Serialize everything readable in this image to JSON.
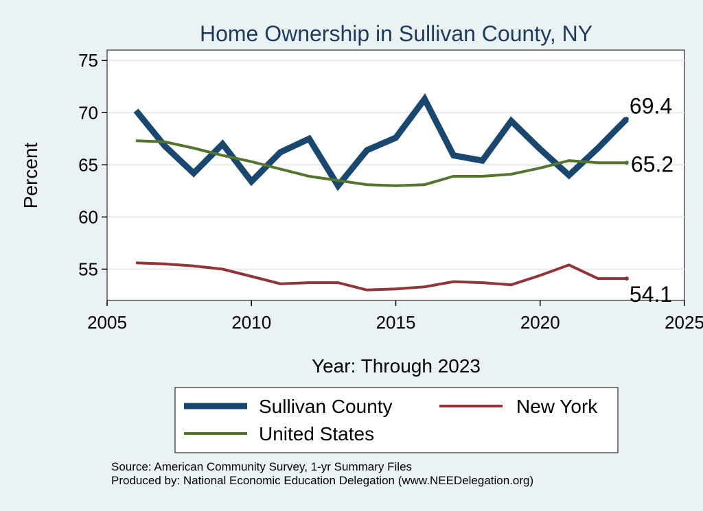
{
  "chart_data": {
    "type": "line",
    "title": "Home Ownership in Sullivan County, NY",
    "xlabel": "Year: Through 2023",
    "ylabel": "Percent",
    "xlim": [
      2005,
      2025
    ],
    "ylim": [
      52,
      76
    ],
    "xticks": [
      2005,
      2010,
      2015,
      2020,
      2025
    ],
    "yticks": [
      55,
      60,
      65,
      70,
      75
    ],
    "grid": true,
    "x": [
      2006,
      2007,
      2008,
      2009,
      2010,
      2011,
      2012,
      2013,
      2014,
      2015,
      2016,
      2017,
      2018,
      2019,
      2020,
      2021,
      2022,
      2023
    ],
    "series": [
      {
        "name": "Sullivan County",
        "color": "#1a476f",
        "values": [
          70.2,
          66.8,
          64.2,
          67.0,
          63.4,
          66.2,
          67.5,
          63.0,
          66.4,
          67.6,
          71.3,
          65.9,
          65.4,
          69.2,
          66.5,
          64.0,
          66.6,
          69.4
        ],
        "end_label": "69.4"
      },
      {
        "name": "New York",
        "color": "#90353b",
        "values": [
          55.6,
          55.5,
          55.3,
          55.0,
          54.3,
          53.6,
          53.7,
          53.7,
          53.0,
          53.1,
          53.3,
          53.8,
          53.7,
          53.5,
          54.4,
          55.4,
          54.1,
          54.1
        ],
        "end_label": "54.1"
      },
      {
        "name": "United States",
        "color": "#55752f",
        "values": [
          67.3,
          67.2,
          66.6,
          65.9,
          65.3,
          64.6,
          63.9,
          63.5,
          63.1,
          63.0,
          63.1,
          63.9,
          63.9,
          64.1,
          64.7,
          65.4,
          65.2,
          65.2
        ],
        "end_label": "65.2"
      }
    ],
    "legend": {
      "placement": "bottom",
      "entries": [
        "Sullivan County",
        "New York",
        "United States"
      ]
    },
    "source_line1": "Source: American Community Survey, 1-yr Summary Files",
    "source_line2": "Produced by: National Economic Education Delegation (www.NEEDelegation.org)"
  }
}
